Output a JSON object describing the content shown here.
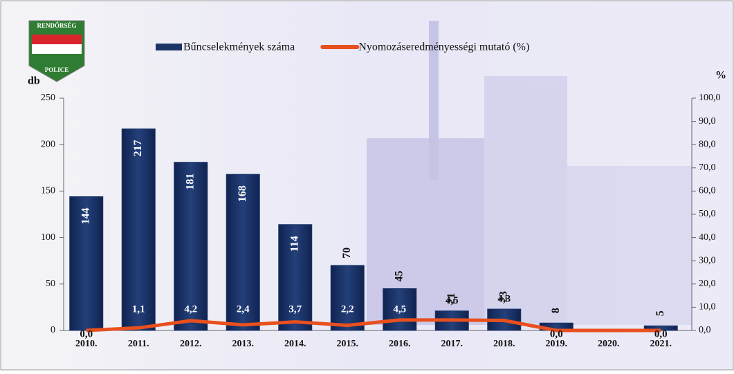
{
  "logo": {
    "top": "RENDŐRSÉG",
    "bottom": "POLICE"
  },
  "chart_data": {
    "type": "bar-line",
    "y_label": "db",
    "y2_label": "%",
    "categories": [
      "2010.",
      "2011.",
      "2012.",
      "2013.",
      "2014.",
      "2015.",
      "2016.",
      "2017.",
      "2018.",
      "2019.",
      "2020.",
      "2021."
    ],
    "series": [
      {
        "name": "Bűncselekmények száma",
        "type": "bar",
        "color": "#1c3366",
        "values": [
          144,
          217,
          181,
          168,
          114,
          70,
          45,
          21,
          23,
          8,
          null,
          5
        ]
      },
      {
        "name": "Nyomozáseredményességi mutató (%)",
        "type": "line",
        "axis": "y2",
        "color": "#e8501e",
        "values": [
          0,
          1.1,
          4.2,
          2.4,
          3.7,
          2.2,
          4.5,
          4.5,
          4.3,
          0,
          0,
          0
        ],
        "value_labels": [
          "0,0",
          "1,1",
          "4,2",
          "2,4",
          "3,7",
          "2,2",
          "4,5",
          "4,5",
          "4,3",
          "0,0",
          null,
          "0,0"
        ]
      }
    ],
    "ylim": [
      0,
      250
    ],
    "yticks": [
      0,
      50,
      100,
      150,
      200,
      250
    ],
    "y2lim": [
      0,
      100
    ],
    "y2ticks": [
      {
        "value": 0,
        "label": "0,0"
      },
      {
        "value": 10,
        "label": "10,0"
      },
      {
        "value": 20,
        "label": "20,0"
      },
      {
        "value": 30,
        "label": "30,0"
      },
      {
        "value": 40,
        "label": "40,0"
      },
      {
        "value": 50,
        "label": "50,0"
      },
      {
        "value": 60,
        "label": "60,0"
      },
      {
        "value": 70,
        "label": "70,0"
      },
      {
        "value": 80,
        "label": "80,0"
      },
      {
        "value": 90,
        "label": "90,0"
      },
      {
        "value": 100,
        "label": "100,0"
      }
    ]
  }
}
